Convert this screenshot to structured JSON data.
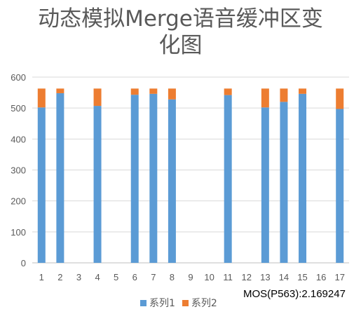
{
  "chart_data": {
    "type": "bar",
    "stacked": true,
    "title_lines": [
      "动态模拟Merge语音缓冲区变",
      "化图"
    ],
    "categories": [
      "1",
      "2",
      "3",
      "4",
      "5",
      "6",
      "7",
      "8",
      "9",
      "10",
      "11",
      "12",
      "13",
      "14",
      "15",
      "16",
      "17"
    ],
    "series": [
      {
        "name": "系列1",
        "color": "#5b9bd5",
        "values": [
          502,
          548,
          0,
          507,
          0,
          543,
          546,
          528,
          0,
          0,
          542,
          0,
          502,
          520,
          546,
          0,
          497
        ]
      },
      {
        "name": "系列2",
        "color": "#ed7d31",
        "values": [
          61,
          15,
          0,
          56,
          0,
          20,
          17,
          35,
          0,
          0,
          21,
          0,
          61,
          43,
          17,
          0,
          66
        ]
      }
    ],
    "ylim": [
      0,
      600
    ],
    "yticks": [
      0,
      100,
      200,
      300,
      400,
      500,
      600
    ],
    "grid": true,
    "legend_position": "bottom"
  },
  "annotation": "MOS(P563):2.169247"
}
